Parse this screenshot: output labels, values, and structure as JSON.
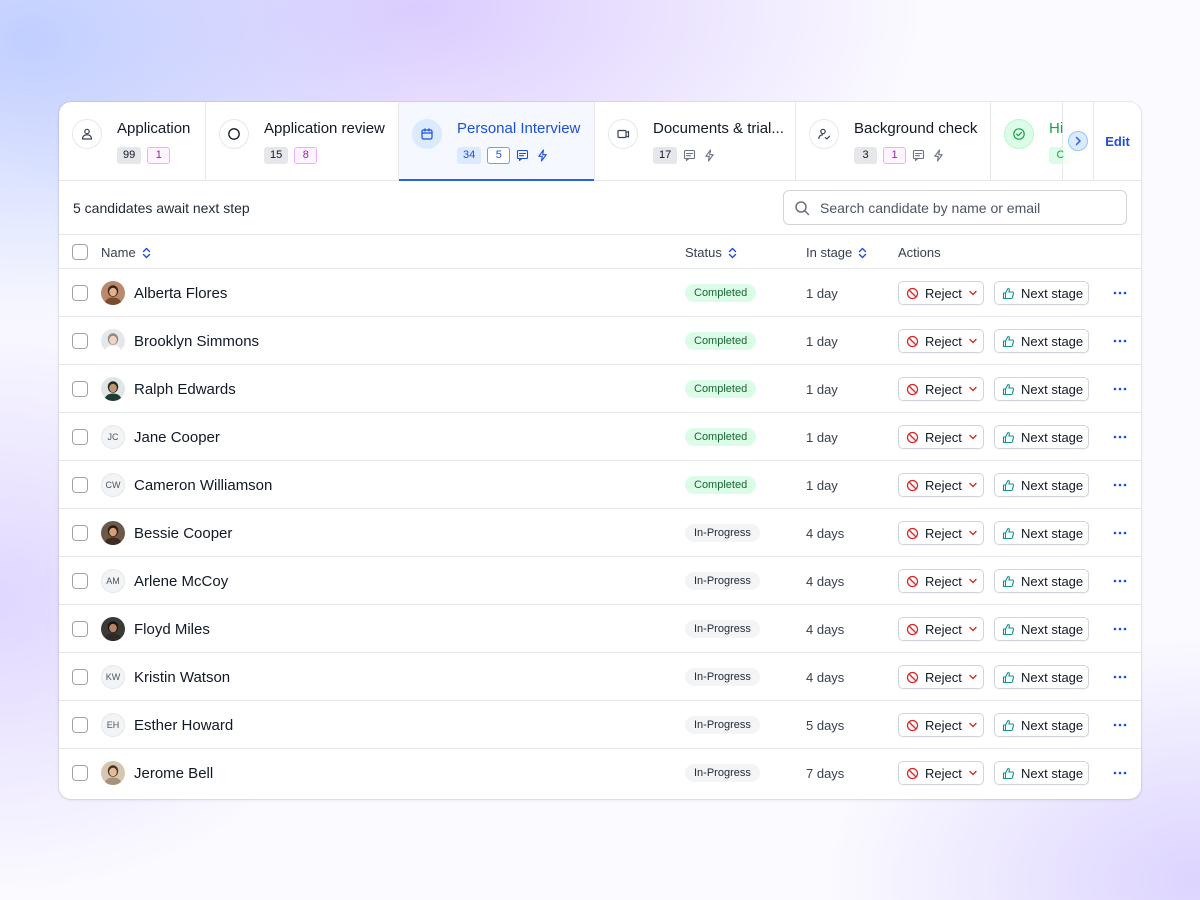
{
  "stages": [
    {
      "title": "Application",
      "icon": "users-icon",
      "counts": [
        {
          "value": "99",
          "style": "gray"
        },
        {
          "value": "1",
          "style": "purple"
        }
      ],
      "extras": []
    },
    {
      "title": "Application review",
      "icon": "circle-icon",
      "counts": [
        {
          "value": "15",
          "style": "gray"
        },
        {
          "value": "8",
          "style": "purple"
        }
      ],
      "extras": []
    },
    {
      "title": "Personal Interview",
      "icon": "calendar-icon",
      "counts": [
        {
          "value": "34",
          "style": "blue-solid"
        },
        {
          "value": "5",
          "style": "blue-outline"
        }
      ],
      "extras": [
        "message-icon",
        "lightning-icon"
      ]
    },
    {
      "title": "Documents & trial...",
      "icon": "document-icon",
      "counts": [
        {
          "value": "17",
          "style": "gray"
        }
      ],
      "extras": [
        "message-icon",
        "lightning-icon"
      ]
    },
    {
      "title": "Background check",
      "icon": "user-check-icon",
      "counts": [
        {
          "value": "3",
          "style": "gray"
        },
        {
          "value": "1",
          "style": "purple"
        }
      ],
      "extras": [
        "message-icon",
        "lightning-icon"
      ]
    },
    {
      "title": "Hi",
      "icon": "check-circle-icon",
      "counts": [
        {
          "value": "C",
          "style": "green"
        }
      ],
      "extras": []
    }
  ],
  "edit_label": "Edit",
  "await_text": "5 candidates await next step",
  "search": {
    "placeholder": "Search candidate by name or email",
    "value": ""
  },
  "columns": {
    "name": "Name",
    "status": "Status",
    "in_stage": "In stage",
    "actions": "Actions"
  },
  "actions": {
    "reject": "Reject",
    "next": "Next stage"
  },
  "candidates": [
    {
      "name": "Alberta Flores",
      "avatar": "photo",
      "initials": "",
      "status": "Completed",
      "in_stage": "1 day"
    },
    {
      "name": "Brooklyn Simmons",
      "avatar": "photo",
      "initials": "",
      "status": "Completed",
      "in_stage": "1 day"
    },
    {
      "name": "Ralph Edwards",
      "avatar": "photo",
      "initials": "",
      "status": "Completed",
      "in_stage": "1 day"
    },
    {
      "name": "Jane Cooper",
      "avatar": "initials",
      "initials": "JC",
      "status": "Completed",
      "in_stage": "1 day"
    },
    {
      "name": "Cameron Williamson",
      "avatar": "initials",
      "initials": "CW",
      "status": "Completed",
      "in_stage": "1 day"
    },
    {
      "name": "Bessie Cooper",
      "avatar": "photo",
      "initials": "",
      "status": "In-Progress",
      "in_stage": "4 days"
    },
    {
      "name": "Arlene McCoy",
      "avatar": "initials",
      "initials": "AM",
      "status": "In-Progress",
      "in_stage": "4 days"
    },
    {
      "name": "Floyd Miles",
      "avatar": "photo",
      "initials": "",
      "status": "In-Progress",
      "in_stage": "4 days"
    },
    {
      "name": "Kristin Watson",
      "avatar": "initials",
      "initials": "KW",
      "status": "In-Progress",
      "in_stage": "4 days"
    },
    {
      "name": "Esther Howard",
      "avatar": "initials",
      "initials": "EH",
      "status": "In-Progress",
      "in_stage": "5 days"
    },
    {
      "name": "Jerome Bell",
      "avatar": "photo",
      "initials": "",
      "status": "In-Progress",
      "in_stage": "7 days"
    }
  ],
  "colors": {
    "accent": "#2563eb",
    "reject": "#dc2626",
    "next": "#0d9488",
    "completed_bg": "#dcfce7",
    "hired": "#16a34a"
  }
}
